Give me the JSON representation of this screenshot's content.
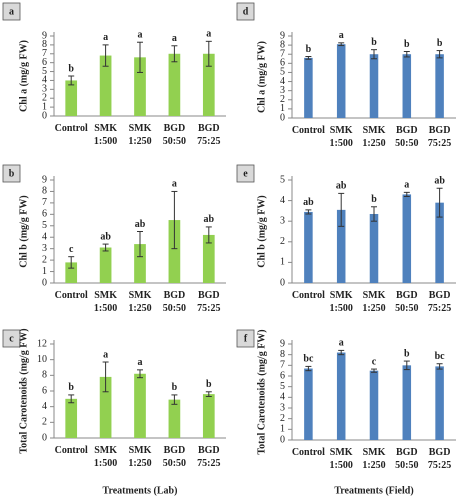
{
  "chart_data": [
    {
      "type": "bar",
      "panel_label": "a",
      "y_label": "Chl a (mg/g FW)",
      "color": "#92d050",
      "categories": [
        [
          "Control"
        ],
        [
          "SMK",
          "1:500"
        ],
        [
          "SMK",
          "1:250"
        ],
        [
          "BGD",
          "50:50"
        ],
        [
          "BGD",
          "75:25"
        ]
      ],
      "values": [
        4.0,
        6.8,
        6.6,
        7.0,
        7.0
      ],
      "errors": [
        0.5,
        1.2,
        1.7,
        0.9,
        1.4
      ],
      "annotations": [
        "b",
        "a",
        "a",
        "a",
        "a"
      ],
      "ylim": [
        0,
        9
      ],
      "yticks": [
        0,
        1,
        2,
        3,
        4,
        5,
        6,
        7,
        8,
        9
      ]
    },
    {
      "type": "bar",
      "panel_label": "b",
      "y_label": "Chl b (mg/g FW)",
      "color": "#92d050",
      "categories": [
        [
          "Control"
        ],
        [
          "SMK",
          "1:500"
        ],
        [
          "SMK",
          "1:250"
        ],
        [
          "BGD",
          "50:50"
        ],
        [
          "BGD",
          "75:25"
        ]
      ],
      "values": [
        1.8,
        3.1,
        3.4,
        5.5,
        4.2
      ],
      "errors": [
        0.5,
        0.3,
        1.1,
        2.5,
        0.7
      ],
      "annotations": [
        "c",
        "ab",
        "ab",
        "a",
        "ab"
      ],
      "ylim": [
        0,
        9
      ],
      "yticks": [
        0,
        1,
        2,
        3,
        4,
        5,
        6,
        7,
        8,
        9
      ]
    },
    {
      "type": "bar",
      "panel_label": "c",
      "y_label": "Total Carotenoids (mg/g FW)",
      "x_label": "Treatments (Lab)",
      "color": "#92d050",
      "categories": [
        [
          "Control"
        ],
        [
          "SMK",
          "1:500"
        ],
        [
          "SMK",
          "1:250"
        ],
        [
          "BGD",
          "50:50"
        ],
        [
          "BGD",
          "75:25"
        ]
      ],
      "values": [
        5.0,
        7.8,
        8.2,
        4.9,
        5.6
      ],
      "errors": [
        0.5,
        1.9,
        0.5,
        0.6,
        0.3
      ],
      "annotations": [
        "b",
        "a",
        "a",
        "b",
        "b"
      ],
      "ylim": [
        0,
        12
      ],
      "yticks": [
        0,
        2,
        4,
        6,
        8,
        10,
        12
      ]
    },
    {
      "type": "bar",
      "panel_label": "d",
      "y_label": "Chl a (mg/g FW)",
      "color": "#4f81bd",
      "categories": [
        [
          "Control"
        ],
        [
          "SMK",
          "1:500"
        ],
        [
          "SMK",
          "1:250"
        ],
        [
          "BGD",
          "50:50"
        ],
        [
          "BGD",
          "75:25"
        ]
      ],
      "values": [
        6.6,
        8.1,
        7.0,
        7.0,
        7.0
      ],
      "errors": [
        0.15,
        0.15,
        0.5,
        0.3,
        0.4
      ],
      "annotations": [
        "b",
        "a",
        "b",
        "b",
        "b"
      ],
      "ylim": [
        0,
        9
      ],
      "yticks": [
        0,
        1,
        2,
        3,
        4,
        5,
        6,
        7,
        8,
        9
      ]
    },
    {
      "type": "bar",
      "panel_label": "e",
      "y_label": "Chl b (mg/g FW)",
      "color": "#4f81bd",
      "categories": [
        [
          "Control"
        ],
        [
          "SMK",
          "1:500"
        ],
        [
          "SMK",
          "1:250"
        ],
        [
          "BGD",
          "50:50"
        ],
        [
          "BGD",
          "75:25"
        ]
      ],
      "values": [
        3.45,
        3.55,
        3.35,
        4.3,
        3.9
      ],
      "errors": [
        0.1,
        0.8,
        0.35,
        0.1,
        0.7
      ],
      "annotations": [
        "ab",
        "ab",
        "b",
        "a",
        "ab"
      ],
      "ylim": [
        0,
        5
      ],
      "yticks": [
        0,
        1,
        2,
        3,
        4,
        5
      ]
    },
    {
      "type": "bar",
      "panel_label": "f",
      "y_label": "Total Carotenoids (mg/g FW)",
      "x_label": "Treatments (Field)",
      "color": "#4f81bd",
      "categories": [
        [
          "Control"
        ],
        [
          "SMK",
          "1:500"
        ],
        [
          "SMK",
          "1:250"
        ],
        [
          "BGD",
          "50:50"
        ],
        [
          "BGD",
          "75:25"
        ]
      ],
      "values": [
        6.7,
        8.2,
        6.5,
        7.0,
        6.9
      ],
      "errors": [
        0.2,
        0.2,
        0.15,
        0.4,
        0.25
      ],
      "annotations": [
        "bc",
        "a",
        "c",
        "b",
        "bc"
      ],
      "ylim": [
        0,
        9
      ],
      "yticks": [
        0,
        1,
        2,
        3,
        4,
        5,
        6,
        7,
        8,
        9
      ]
    }
  ]
}
